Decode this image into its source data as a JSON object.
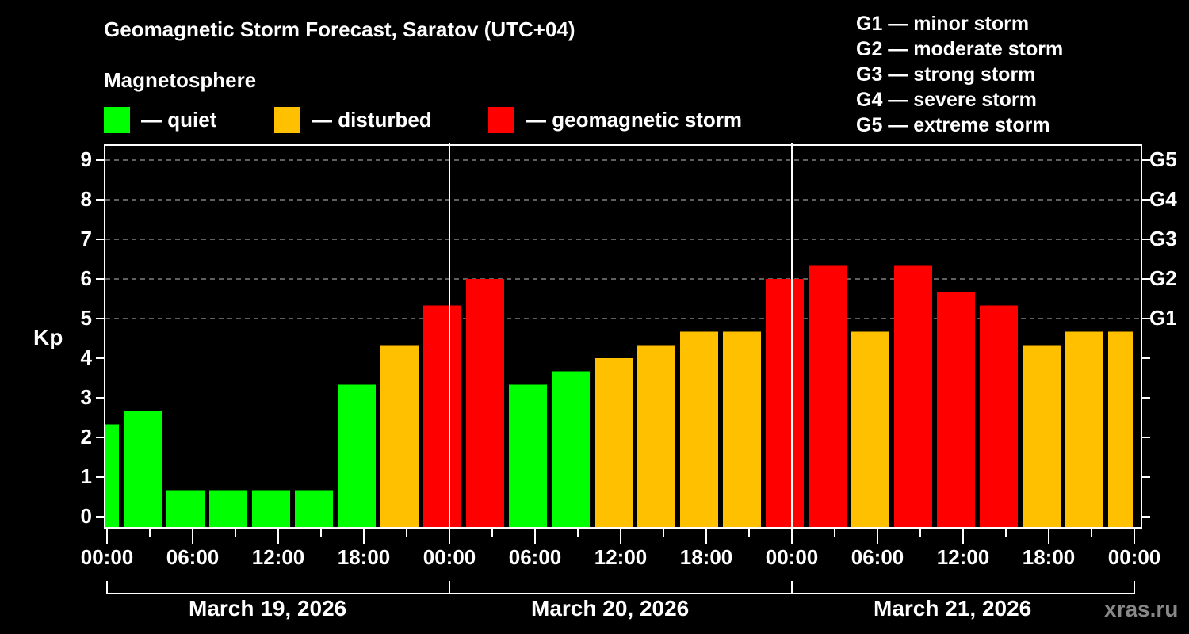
{
  "header": {
    "title": "Geomagnetic Storm Forecast, Saratov (UTC+04)",
    "subtitle": "Magnetosphere"
  },
  "legend": {
    "items": [
      {
        "label": "— quiet",
        "color": "#00ff00"
      },
      {
        "label": "— disturbed",
        "color": "#ffc000"
      },
      {
        "label": "— geomagnetic storm",
        "color": "#ff0000"
      }
    ]
  },
  "g_legend": {
    "items": [
      "G1 — minor storm",
      "G2 — moderate storm",
      "G3 — strong storm",
      "G4 — severe storm",
      "G5 — extreme storm"
    ]
  },
  "axes": {
    "y_label": "Kp",
    "y_ticks": [
      "0",
      "1",
      "2",
      "3",
      "4",
      "5",
      "6",
      "7",
      "8",
      "9"
    ],
    "y_right_ticks": [
      {
        "kp": 5,
        "label": "G1"
      },
      {
        "kp": 6,
        "label": "G2"
      },
      {
        "kp": 7,
        "label": "G3"
      },
      {
        "kp": 8,
        "label": "G4"
      },
      {
        "kp": 9,
        "label": "G5"
      }
    ],
    "x_ticks": [
      "00:00",
      "06:00",
      "12:00",
      "18:00",
      "00:00",
      "06:00",
      "12:00",
      "18:00",
      "00:00",
      "06:00",
      "12:00",
      "18:00",
      "00:00"
    ],
    "days": [
      "March 19, 2026",
      "March 20, 2026",
      "March 21, 2026"
    ]
  },
  "watermark": "xras.ru",
  "colors": {
    "quiet": "#00ff00",
    "disturbed": "#ffc000",
    "storm": "#ff0000",
    "grid": "#808080",
    "axis": "#ffffff",
    "background": "#000000"
  },
  "chart_data": {
    "type": "bar",
    "title": "Geomagnetic Storm Forecast, Saratov (UTC+04)",
    "xlabel": "",
    "ylabel": "Kp",
    "ylim": [
      0,
      9
    ],
    "grid": "horizontal dashed at Kp 5-9",
    "legend_position": "top",
    "interval_hours": 3,
    "categories": [
      "Mar 18 22:30",
      "Mar 19 01:30",
      "Mar 19 04:30",
      "Mar 19 07:30",
      "Mar 19 10:30",
      "Mar 19 13:30",
      "Mar 19 16:30",
      "Mar 19 19:30",
      "Mar 19 22:30",
      "Mar 20 01:30",
      "Mar 20 04:30",
      "Mar 20 07:30",
      "Mar 20 10:30",
      "Mar 20 13:30",
      "Mar 20 16:30",
      "Mar 20 19:30",
      "Mar 20 22:30",
      "Mar 21 01:30",
      "Mar 21 04:30",
      "Mar 21 07:30",
      "Mar 21 10:30",
      "Mar 21 13:30",
      "Mar 21 16:30",
      "Mar 21 19:30",
      "Mar 21 22:30"
    ],
    "values": [
      2.33,
      2.67,
      0.67,
      0.67,
      0.67,
      0.67,
      3.33,
      4.33,
      5.33,
      6.0,
      3.33,
      3.67,
      4.0,
      4.33,
      4.67,
      4.67,
      6.0,
      6.33,
      4.67,
      6.33,
      5.67,
      5.33,
      4.33,
      4.67,
      4.67
    ],
    "levels": [
      "quiet",
      "quiet",
      "quiet",
      "quiet",
      "quiet",
      "quiet",
      "quiet",
      "disturbed",
      "storm",
      "storm",
      "quiet",
      "quiet",
      "disturbed",
      "disturbed",
      "disturbed",
      "disturbed",
      "storm",
      "storm",
      "disturbed",
      "storm",
      "storm",
      "storm",
      "disturbed",
      "disturbed",
      "disturbed"
    ],
    "right_axis_labels": {
      "5": "G1",
      "6": "G2",
      "7": "G3",
      "8": "G4",
      "9": "G5"
    }
  }
}
